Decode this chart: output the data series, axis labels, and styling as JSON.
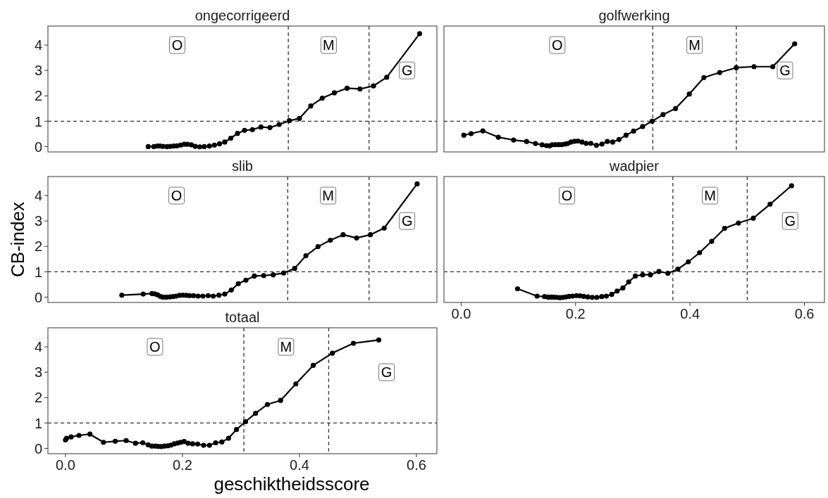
{
  "chart_data": [
    {
      "type": "line",
      "title": "ongecorrigeerd",
      "marker": "circle",
      "line_style": "solid",
      "tick_labels": "y",
      "xlim": [
        -0.03,
        0.635
      ],
      "ylim": [
        -0.21,
        4.75
      ],
      "yticks": [
        0,
        1,
        2,
        3,
        4
      ],
      "ref_lines": [
        {
          "axis": "y",
          "value": 1,
          "line_style": "dashed",
          "color": "#333333"
        },
        {
          "axis": "x",
          "value": 0.381,
          "line_style": "dashed",
          "color": "#333333"
        },
        {
          "axis": "x",
          "value": 0.519,
          "line_style": "dashed",
          "color": "#333333"
        }
      ],
      "annotations": [
        {
          "text": "O",
          "x": 0.191,
          "y": 4
        },
        {
          "text": "M",
          "x": 0.45,
          "y": 4
        },
        {
          "text": "G",
          "x": 0.584,
          "y": 3
        }
      ],
      "series": [
        {
          "color": "#000000",
          "x": [
            0.1415,
            0.1511,
            0.1569,
            0.1617,
            0.1666,
            0.1733,
            0.1791,
            0.1848,
            0.1906,
            0.1969,
            0.2031,
            0.2084,
            0.2152,
            0.2219,
            0.2296,
            0.2373,
            0.246,
            0.2546,
            0.2633,
            0.2724,
            0.2826,
            0.2941,
            0.3061,
            0.3196,
            0.3341,
            0.3495,
            0.3653,
            0.3827,
            0.4,
            0.4193,
            0.439,
            0.4597,
            0.4814,
            0.5035,
            0.5266,
            0.5492,
            0.6055
          ],
          "values": [
            0,
            0,
            0.02,
            0.02,
            0.01,
            0,
            0.01,
            0.02,
            0.03,
            0.06,
            0.09,
            0.09,
            0.07,
            0.01,
            -0.01,
            0,
            0.02,
            0.06,
            0.11,
            0.18,
            0.33,
            0.52,
            0.64,
            0.67,
            0.77,
            0.75,
            0.87,
            1.02,
            1.11,
            1.6,
            1.91,
            2.12,
            2.3,
            2.27,
            2.39,
            2.73,
            4.45
          ]
        }
      ]
    },
    {
      "type": "line",
      "title": "golfwerking",
      "marker": "circle",
      "line_style": "solid",
      "tick_labels": false,
      "xlim": [
        -0.03,
        0.635
      ],
      "ylim": [
        -0.21,
        4.75
      ],
      "ref_lines": [
        {
          "axis": "y",
          "value": 1,
          "line_style": "dashed",
          "color": "#333333"
        },
        {
          "axis": "x",
          "value": 0.335,
          "line_style": "dashed",
          "color": "#333333"
        },
        {
          "axis": "x",
          "value": 0.481,
          "line_style": "dashed",
          "color": "#333333"
        }
      ],
      "annotations": [
        {
          "text": "O",
          "x": 0.168,
          "y": 4
        },
        {
          "text": "M",
          "x": 0.408,
          "y": 4
        },
        {
          "text": "G",
          "x": 0.566,
          "y": 3
        }
      ],
      "series": [
        {
          "color": "#000000",
          "x": [
            0.0047,
            0.0174,
            0.038,
            0.065,
            0.0918,
            0.1144,
            0.13,
            0.1416,
            0.1492,
            0.1548,
            0.1594,
            0.165,
            0.1705,
            0.176,
            0.1815,
            0.1862,
            0.1918,
            0.1981,
            0.2041,
            0.2113,
            0.2185,
            0.2266,
            0.2364,
            0.2462,
            0.2555,
            0.2649,
            0.2759,
            0.2883,
            0.3014,
            0.3172,
            0.3338,
            0.3529,
            0.3746,
            0.3988,
            0.4243,
            0.452,
            0.4809,
            0.5119,
            0.5446,
            0.5829
          ],
          "values": [
            0.45,
            0.51,
            0.62,
            0.37,
            0.26,
            0.2,
            0.12,
            0.07,
            0.04,
            0.03,
            0.07,
            0.08,
            0.08,
            0.08,
            0.1,
            0.12,
            0.18,
            0.21,
            0.22,
            0.18,
            0.13,
            0.13,
            0.05,
            0.1,
            0.2,
            0.18,
            0.28,
            0.45,
            0.61,
            0.79,
            1.0,
            1.26,
            1.5,
            2.07,
            2.72,
            2.92,
            3.11,
            3.15,
            3.15,
            4.05
          ]
        }
      ]
    },
    {
      "type": "line",
      "title": "slib",
      "ylabel": "CB-index",
      "marker": "circle",
      "line_style": "solid",
      "tick_labels": "y",
      "xlim": [
        -0.03,
        0.635
      ],
      "ylim": [
        -0.21,
        4.75
      ],
      "yticks": [
        0,
        1,
        2,
        3,
        4
      ],
      "ref_lines": [
        {
          "axis": "y",
          "value": 1,
          "line_style": "dashed",
          "color": "#333333"
        },
        {
          "axis": "x",
          "value": 0.38,
          "line_style": "dashed",
          "color": "#333333"
        },
        {
          "axis": "x",
          "value": 0.519,
          "line_style": "dashed",
          "color": "#333333"
        }
      ],
      "annotations": [
        {
          "text": "O",
          "x": 0.19,
          "y": 4
        },
        {
          "text": "M",
          "x": 0.449,
          "y": 4
        },
        {
          "text": "G",
          "x": 0.584,
          "y": 3
        }
      ],
      "series": [
        {
          "color": "#000000",
          "x": [
            0.0963,
            0.1329,
            0.1478,
            0.1526,
            0.1574,
            0.1622,
            0.167,
            0.1728,
            0.1786,
            0.1839,
            0.1892,
            0.1949,
            0.2007,
            0.2065,
            0.2123,
            0.219,
            0.2267,
            0.2349,
            0.244,
            0.2527,
            0.2623,
            0.2724,
            0.2835,
            0.2955,
            0.3085,
            0.3229,
            0.3388,
            0.3552,
            0.373,
            0.3918,
            0.4111,
            0.4318,
            0.4529,
            0.4746,
            0.4977,
            0.5213,
            0.5449,
            0.6012
          ],
          "values": [
            0.08,
            0.12,
            0.14,
            0.13,
            0.09,
            0.03,
            0,
            0,
            0.01,
            0.02,
            0.04,
            0.07,
            0.08,
            0.07,
            0.06,
            0.06,
            0.04,
            0.04,
            0.06,
            0.04,
            0.08,
            0.12,
            0.28,
            0.53,
            0.67,
            0.83,
            0.85,
            0.88,
            0.95,
            1.13,
            1.63,
            1.99,
            2.24,
            2.46,
            2.33,
            2.46,
            2.72,
            4.46
          ]
        }
      ]
    },
    {
      "type": "line",
      "title": "wadpier",
      "marker": "circle",
      "line_style": "solid",
      "tick_labels": "x",
      "xlim": [
        -0.03,
        0.635
      ],
      "ylim": [
        -0.21,
        4.75
      ],
      "xticks": [
        {
          "value": 0,
          "label": "0.0"
        },
        0.2,
        0.4,
        0.6
      ],
      "ref_lines": [
        {
          "axis": "y",
          "value": 1,
          "line_style": "dashed",
          "color": "#333333"
        },
        {
          "axis": "x",
          "value": 0.37,
          "line_style": "dashed",
          "color": "#333333"
        },
        {
          "axis": "x",
          "value": 0.5,
          "line_style": "dashed",
          "color": "#333333"
        }
      ],
      "annotations": [
        {
          "text": "O",
          "x": 0.185,
          "y": 4
        },
        {
          "text": "M",
          "x": 0.435,
          "y": 4
        },
        {
          "text": "G",
          "x": 0.575,
          "y": 3
        }
      ],
      "series": [
        {
          "color": "#000000",
          "x": [
            0.0986,
            0.1327,
            0.1458,
            0.1522,
            0.1573,
            0.1624,
            0.1675,
            0.1726,
            0.1777,
            0.1832,
            0.1888,
            0.1947,
            0.2015,
            0.2079,
            0.2143,
            0.2215,
            0.2292,
            0.2372,
            0.2457,
            0.2538,
            0.2632,
            0.2726,
            0.2827,
            0.2929,
            0.3044,
            0.3172,
            0.3308,
            0.3457,
            0.3614,
            0.3788,
            0.3971,
            0.4167,
            0.4379,
            0.4605,
            0.4847,
            0.5106,
            0.5399,
            0.5774
          ],
          "values": [
            0.33,
            0.04,
            0.02,
            0,
            0,
            0,
            -0.01,
            -0.02,
            -0.01,
            0.01,
            0.03,
            0.04,
            0.06,
            0.05,
            0.03,
            0.01,
            -0.01,
            -0.01,
            0.02,
            0.04,
            0.11,
            0.24,
            0.36,
            0.6,
            0.83,
            0.88,
            0.88,
            1.01,
            0.94,
            1.1,
            1.39,
            1.75,
            2.2,
            2.71,
            2.92,
            3.11,
            3.66,
            4.39
          ]
        }
      ]
    },
    {
      "type": "line",
      "title": "totaal",
      "xlabel": "geschiktheidsscore",
      "marker": "circle",
      "line_style": "solid",
      "xlim": [
        -0.03,
        0.635
      ],
      "ylim": [
        -0.21,
        4.75
      ],
      "xticks": [
        {
          "value": 0,
          "label": "0.0"
        },
        0.2,
        0.4,
        0.6
      ],
      "yticks": [
        0,
        1,
        2,
        3,
        4
      ],
      "ref_lines": [
        {
          "axis": "y",
          "value": 1,
          "line_style": "dashed",
          "color": "#333333"
        },
        {
          "axis": "x",
          "value": 0.305,
          "line_style": "dashed",
          "color": "#333333"
        },
        {
          "axis": "x",
          "value": 0.45,
          "line_style": "dashed",
          "color": "#333333"
        }
      ],
      "annotations": [
        {
          "text": "O",
          "x": 0.153,
          "y": 4
        },
        {
          "text": "M",
          "x": 0.377,
          "y": 4
        },
        {
          "text": "G",
          "x": 0.549,
          "y": 3
        }
      ],
      "series": [
        {
          "color": "#000000",
          "x": [
            0,
            0.0019,
            0.0096,
            0.0231,
            0.0418,
            0.0649,
            0.0851,
            0.1038,
            0.1197,
            0.1322,
            0.1413,
            0.1476,
            0.1538,
            0.1587,
            0.1635,
            0.1692,
            0.175,
            0.1803,
            0.1861,
            0.1918,
            0.1971,
            0.2029,
            0.2096,
            0.2173,
            0.226,
            0.2361,
            0.2462,
            0.2567,
            0.2673,
            0.2788,
            0.2923,
            0.3077,
            0.325,
            0.3452,
            0.3678,
            0.3938,
            0.4236,
            0.4563,
            0.4923,
            0.5356
          ],
          "values": [
            0.33,
            0.4,
            0.45,
            0.51,
            0.56,
            0.24,
            0.28,
            0.31,
            0.2,
            0.22,
            0.14,
            0.09,
            0.09,
            0.08,
            0.07,
            0.09,
            0.1,
            0.13,
            0.18,
            0.21,
            0.24,
            0.27,
            0.2,
            0.18,
            0.17,
            0.12,
            0.12,
            0.22,
            0.25,
            0.4,
            0.74,
            1.05,
            1.38,
            1.73,
            1.89,
            2.54,
            3.27,
            3.75,
            4.14,
            4.27
          ]
        }
      ]
    }
  ]
}
